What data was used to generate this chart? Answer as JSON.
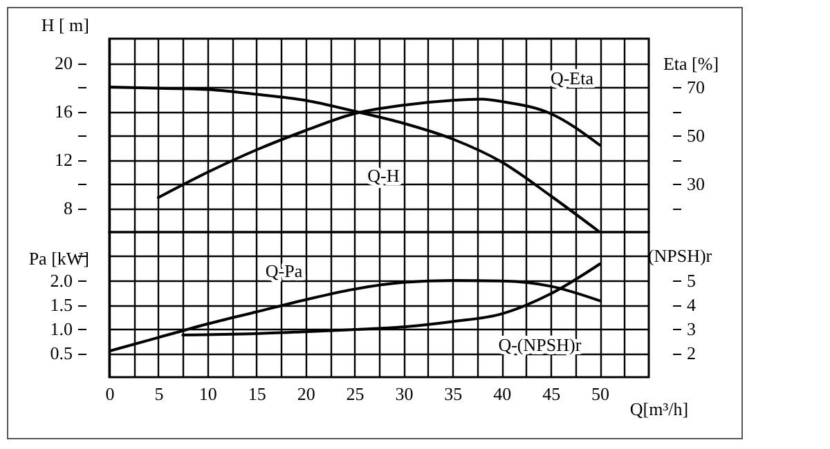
{
  "chart_data": [
    {
      "type": "line",
      "ylabel": "H [ m]",
      "y2label": "Eta  [%]",
      "xlim": [
        0,
        55
      ],
      "xticks": [
        0,
        {
          "value": 2.5,
          "label": null
        },
        5,
        {
          "value": 7.5,
          "label": null
        },
        10,
        {
          "value": 12.5,
          "label": null
        },
        15,
        {
          "value": 17.5,
          "label": null
        },
        20,
        {
          "value": 22.5,
          "label": null
        },
        25,
        {
          "value": 27.5,
          "label": null
        },
        30,
        {
          "value": 32.5,
          "label": null
        },
        35,
        {
          "value": 37.5,
          "label": null
        },
        40,
        {
          "value": 42.5,
          "label": null
        },
        45,
        {
          "value": 47.5,
          "label": null
        },
        50,
        {
          "value": 52.5,
          "label": null
        }
      ],
      "ylim": [
        6,
        22
      ],
      "yticks": [
        8,
        {
          "value": 10,
          "label": null
        },
        12,
        {
          "value": 14,
          "label": null
        },
        16,
        {
          "value": 18,
          "label": null
        },
        20
      ],
      "y2lim": [
        10,
        90
      ],
      "y2ticks": [
        {
          "value": 20,
          "label": null
        },
        30,
        {
          "value": 40,
          "label": null
        },
        50,
        {
          "value": 60,
          "label": null
        },
        70
      ],
      "grid": true,
      "tick_labels": "y",
      "series": [
        {
          "name": "Q-H",
          "color": "#000000",
          "x": [
            0,
            5,
            10,
            15,
            20,
            25,
            30,
            35,
            40,
            45,
            50
          ],
          "values": [
            18,
            17.9,
            17.8,
            17.4,
            16.9,
            16.0,
            15.0,
            13.7,
            11.8,
            9.0,
            6.0
          ]
        },
        {
          "name": "Q-Eta",
          "color": "#000000",
          "axis": "y2",
          "x": [
            5,
            10,
            15,
            20,
            25,
            30,
            35,
            38,
            40,
            45,
            50
          ],
          "values": [
            24.3,
            34.7,
            44,
            52,
            59,
            62.5,
            64.5,
            65,
            64,
            59,
            46
          ]
        }
      ]
    },
    {
      "type": "line",
      "ylabel": "Pa  [kW]",
      "y2label": "(NPSH)r",
      "xlabel": "Q[m³/h]",
      "xlim": [
        0,
        55
      ],
      "xticks": [
        0,
        {
          "value": 2.5,
          "label": null
        },
        5,
        {
          "value": 7.5,
          "label": null
        },
        10,
        {
          "value": 12.5,
          "label": null
        },
        15,
        {
          "value": 17.5,
          "label": null
        },
        20,
        {
          "value": 22.5,
          "label": null
        },
        25,
        {
          "value": 27.5,
          "label": null
        },
        30,
        {
          "value": 32.5,
          "label": null
        },
        35,
        {
          "value": 37.5,
          "label": null
        },
        40,
        {
          "value": 42.5,
          "label": null
        },
        45,
        {
          "value": 47.5,
          "label": null
        },
        50,
        {
          "value": 52.5,
          "label": null
        }
      ],
      "ylim": [
        0,
        3
      ],
      "yticks": [
        {
          "value": 0.5,
          "label": "0.5"
        },
        {
          "value": 1,
          "label": "1.0"
        },
        {
          "value": 1.5,
          "label": "1.5"
        },
        {
          "value": 2,
          "label": "2.0"
        },
        {
          "value": 2.5,
          "label": null
        }
      ],
      "y2lim": [
        1,
        7
      ],
      "y2ticks": [
        2,
        3,
        4,
        5
      ],
      "grid": true,
      "series": [
        {
          "name": "Q-Pa",
          "color": "#000000",
          "x": [
            0,
            5,
            10,
            15,
            20,
            25,
            30,
            35,
            40,
            45,
            50
          ],
          "values": [
            0.54,
            0.82,
            1.1,
            1.35,
            1.6,
            1.82,
            1.96,
            2.0,
            1.99,
            1.88,
            1.58
          ]
        },
        {
          "name": "Q-(NPSH)r",
          "color": "#000000",
          "axis": "y2",
          "x": [
            7.5,
            10,
            15,
            20,
            25,
            30,
            35,
            40,
            45,
            50
          ],
          "values": [
            2.74,
            2.76,
            2.8,
            2.88,
            2.97,
            3.08,
            3.3,
            3.62,
            4.45,
            5.68
          ]
        }
      ]
    }
  ]
}
